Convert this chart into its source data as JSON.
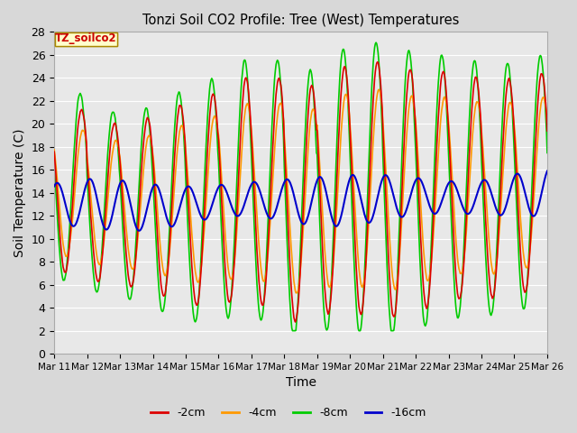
{
  "title": "Tonzi Soil CO2 Profile: Tree (West) Temperatures",
  "xlabel": "Time",
  "ylabel": "Soil Temperature (C)",
  "legend_title": "TZ_soilco2",
  "ylim": [
    0,
    28
  ],
  "xlim": [
    0,
    360
  ],
  "series": {
    "-2cm": {
      "color": "#dd0000",
      "lw": 1.2
    },
    "-4cm": {
      "color": "#ff9900",
      "lw": 1.2
    },
    "-8cm": {
      "color": "#00cc00",
      "lw": 1.2
    },
    "-16cm": {
      "color": "#0000cc",
      "lw": 1.5
    }
  },
  "xtick_labels": [
    "Mar 11",
    "Mar 12",
    "Mar 13",
    "Mar 14",
    "Mar 15",
    "Mar 16",
    "Mar 17",
    "Mar 18",
    "Mar 19",
    "Mar 20",
    "Mar 21",
    "Mar 22",
    "Mar 23",
    "Mar 24",
    "Mar 25",
    "Mar 26"
  ],
  "xtick_positions": [
    0,
    24,
    48,
    72,
    96,
    120,
    144,
    168,
    192,
    216,
    240,
    264,
    288,
    312,
    336,
    360
  ],
  "background_color": "#e8e8e8",
  "grid_color": "#ffffff",
  "fig_bg": "#d8d8d8",
  "font_size": 10
}
